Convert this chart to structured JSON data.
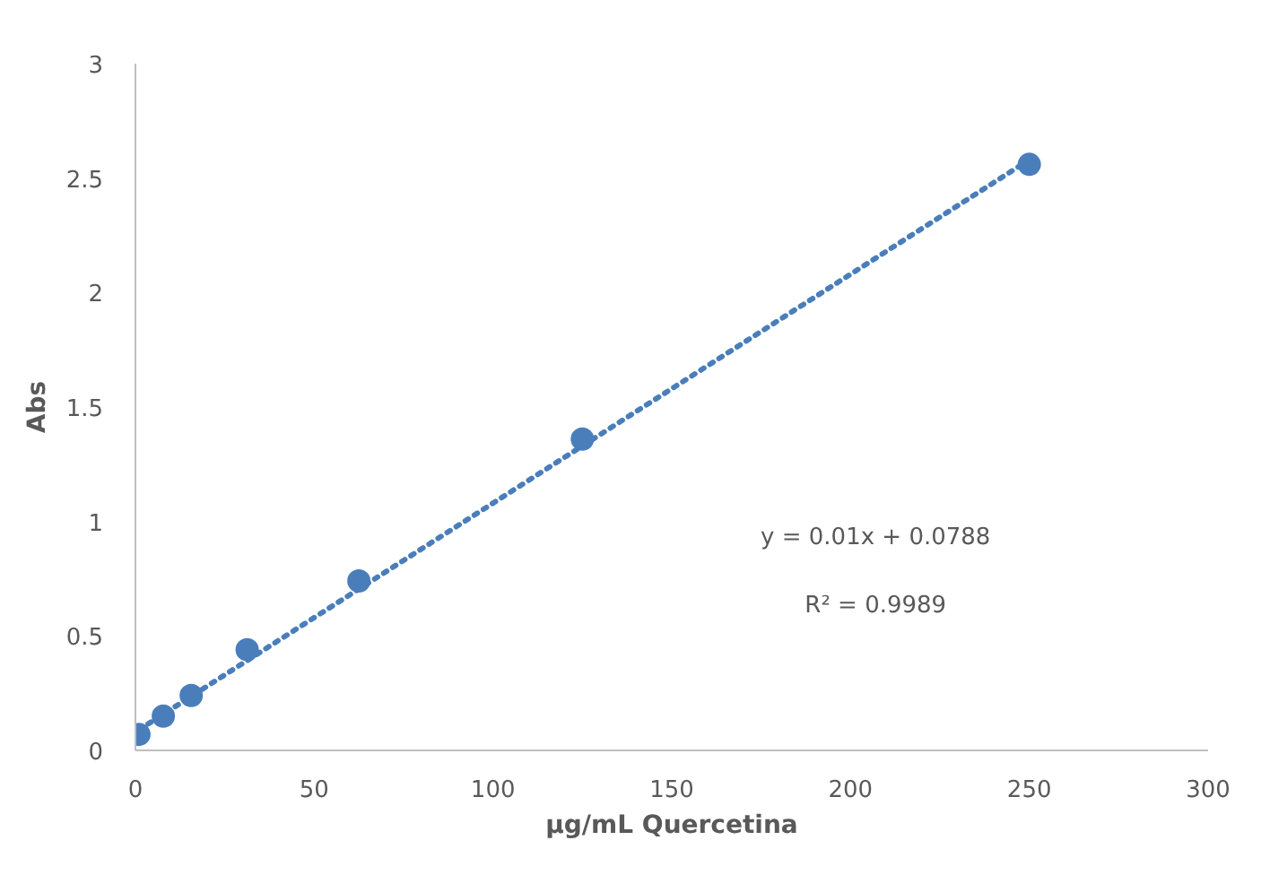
{
  "chart_data": {
    "type": "scatter",
    "xlabel": "µg/mL Quercetina",
    "ylabel": "Abs",
    "xlim": [
      0,
      300
    ],
    "xticks": [
      0,
      50,
      100,
      150,
      200,
      250,
      300
    ],
    "ylim": [
      0,
      3
    ],
    "yticks": [
      0,
      0.5,
      1,
      1.5,
      2,
      2.5,
      3
    ],
    "marker": "circle",
    "series": [
      {
        "color": "#4a7ebb",
        "x": [
          0.98,
          7.8,
          15.6,
          31.25,
          62.5,
          125,
          250
        ],
        "values": [
          0.07,
          0.15,
          0.24,
          0.44,
          0.74,
          1.36,
          2.56
        ]
      },
      {
        "type": "line",
        "marker": "none",
        "color": "#4a7ebb",
        "line_style": "dotted",
        "x": [
          1,
          250
        ],
        "values": [
          0.09,
          2.58
        ]
      }
    ],
    "annotations": [
      "y = 0.01x + 0.0788",
      "R² = 0.9989"
    ]
  }
}
